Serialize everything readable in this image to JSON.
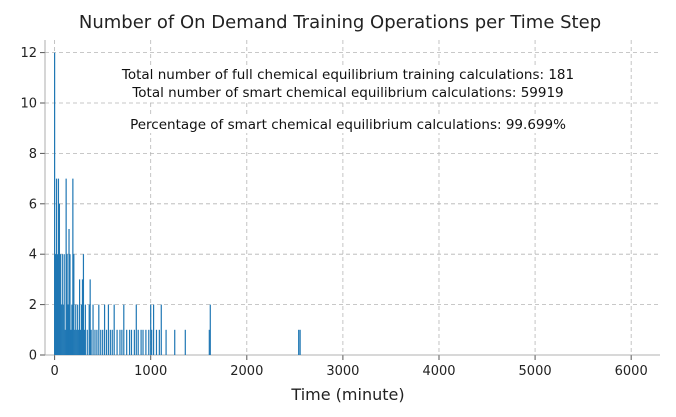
{
  "chart_data": {
    "type": "bar",
    "title": "Number of On Demand Training Operations per Time Step",
    "xlabel": "Time (minute)",
    "ylabel": "",
    "xlim": [
      -100,
      6300
    ],
    "ylim": [
      0,
      12.5
    ],
    "xticks": [
      0,
      1000,
      2000,
      3000,
      4000,
      5000,
      6000
    ],
    "yticks": [
      0,
      2,
      4,
      6,
      8,
      10,
      12
    ],
    "grid": true,
    "color": "#1f77b4",
    "annotations": [
      "Total number of full chemical equilibrium training calculations: 181",
      "Total number of smart chemical equilibrium calculations: 59919",
      "Percentage of smart chemical equilibrium calculations: 99.699%"
    ],
    "spikes": [
      {
        "x": 0,
        "y": 12
      },
      {
        "x": 10,
        "y": 4
      },
      {
        "x": 20,
        "y": 7
      },
      {
        "x": 30,
        "y": 4
      },
      {
        "x": 40,
        "y": 7
      },
      {
        "x": 50,
        "y": 6
      },
      {
        "x": 60,
        "y": 4
      },
      {
        "x": 70,
        "y": 2
      },
      {
        "x": 80,
        "y": 4
      },
      {
        "x": 90,
        "y": 2
      },
      {
        "x": 100,
        "y": 4
      },
      {
        "x": 110,
        "y": 1
      },
      {
        "x": 120,
        "y": 7
      },
      {
        "x": 130,
        "y": 4
      },
      {
        "x": 140,
        "y": 2
      },
      {
        "x": 150,
        "y": 5
      },
      {
        "x": 160,
        "y": 4
      },
      {
        "x": 170,
        "y": 1
      },
      {
        "x": 180,
        "y": 2
      },
      {
        "x": 190,
        "y": 7
      },
      {
        "x": 200,
        "y": 4
      },
      {
        "x": 210,
        "y": 1
      },
      {
        "x": 220,
        "y": 2
      },
      {
        "x": 230,
        "y": 1
      },
      {
        "x": 240,
        "y": 2
      },
      {
        "x": 250,
        "y": 1
      },
      {
        "x": 260,
        "y": 3
      },
      {
        "x": 270,
        "y": 1
      },
      {
        "x": 280,
        "y": 2
      },
      {
        "x": 290,
        "y": 3
      },
      {
        "x": 300,
        "y": 4
      },
      {
        "x": 310,
        "y": 1
      },
      {
        "x": 320,
        "y": 2
      },
      {
        "x": 340,
        "y": 1
      },
      {
        "x": 360,
        "y": 2
      },
      {
        "x": 370,
        "y": 3
      },
      {
        "x": 380,
        "y": 1
      },
      {
        "x": 400,
        "y": 2
      },
      {
        "x": 420,
        "y": 1
      },
      {
        "x": 440,
        "y": 1
      },
      {
        "x": 460,
        "y": 2
      },
      {
        "x": 480,
        "y": 1
      },
      {
        "x": 500,
        "y": 1
      },
      {
        "x": 520,
        "y": 2
      },
      {
        "x": 540,
        "y": 1
      },
      {
        "x": 560,
        "y": 2
      },
      {
        "x": 580,
        "y": 1
      },
      {
        "x": 600,
        "y": 1
      },
      {
        "x": 620,
        "y": 2
      },
      {
        "x": 650,
        "y": 1
      },
      {
        "x": 680,
        "y": 1
      },
      {
        "x": 700,
        "y": 1
      },
      {
        "x": 720,
        "y": 2
      },
      {
        "x": 750,
        "y": 1
      },
      {
        "x": 780,
        "y": 1
      },
      {
        "x": 800,
        "y": 1
      },
      {
        "x": 830,
        "y": 1
      },
      {
        "x": 850,
        "y": 2
      },
      {
        "x": 870,
        "y": 1
      },
      {
        "x": 900,
        "y": 1
      },
      {
        "x": 920,
        "y": 1
      },
      {
        "x": 950,
        "y": 1
      },
      {
        "x": 980,
        "y": 1
      },
      {
        "x": 1000,
        "y": 2
      },
      {
        "x": 1010,
        "y": 1
      },
      {
        "x": 1030,
        "y": 2
      },
      {
        "x": 1060,
        "y": 1
      },
      {
        "x": 1090,
        "y": 1
      },
      {
        "x": 1110,
        "y": 2
      },
      {
        "x": 1160,
        "y": 1
      },
      {
        "x": 1250,
        "y": 1
      },
      {
        "x": 1360,
        "y": 1
      },
      {
        "x": 1610,
        "y": 1
      },
      {
        "x": 1620,
        "y": 2
      },
      {
        "x": 2540,
        "y": 1
      },
      {
        "x": 2555,
        "y": 1
      }
    ]
  }
}
